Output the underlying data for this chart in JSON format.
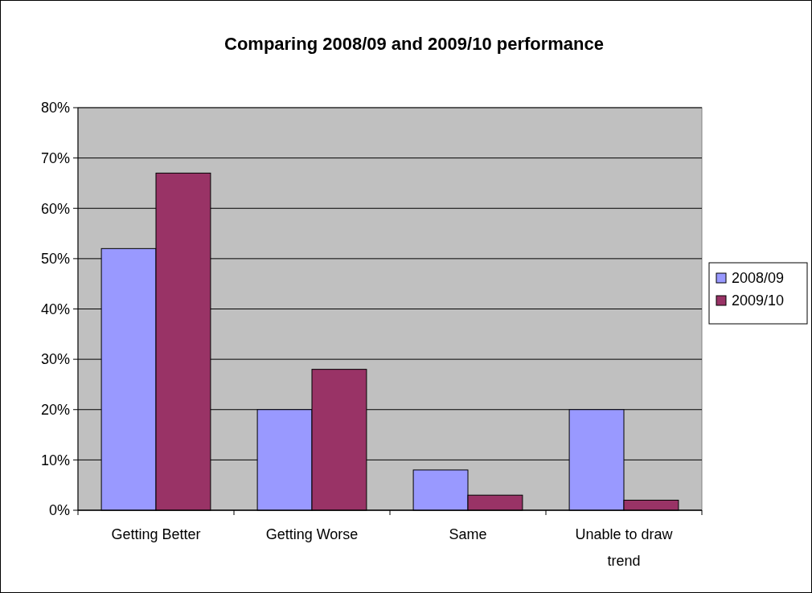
{
  "chart_data": {
    "type": "bar",
    "title": "Comparing 2008/09 and 2009/10 performance",
    "categories": [
      "Getting Better",
      "Getting Worse",
      "Same",
      "Unable to draw trend"
    ],
    "series": [
      {
        "name": "2008/09",
        "color": "#9999ff",
        "values": [
          52,
          20,
          8,
          20
        ]
      },
      {
        "name": "2009/10",
        "color": "#993366",
        "values": [
          67,
          28,
          3,
          2
        ]
      }
    ],
    "ylim": [
      0,
      80
    ],
    "yticks": [
      {
        "value": 0,
        "label": "0%"
      },
      {
        "value": 10,
        "label": "10%"
      },
      {
        "value": 20,
        "label": "20%"
      },
      {
        "value": 30,
        "label": "30%"
      },
      {
        "value": 40,
        "label": "40%"
      },
      {
        "value": 50,
        "label": "50%"
      },
      {
        "value": 60,
        "label": "60%"
      },
      {
        "value": 70,
        "label": "70%"
      },
      {
        "value": 80,
        "label": "80%"
      }
    ],
    "grid": "y",
    "legend": "right"
  }
}
